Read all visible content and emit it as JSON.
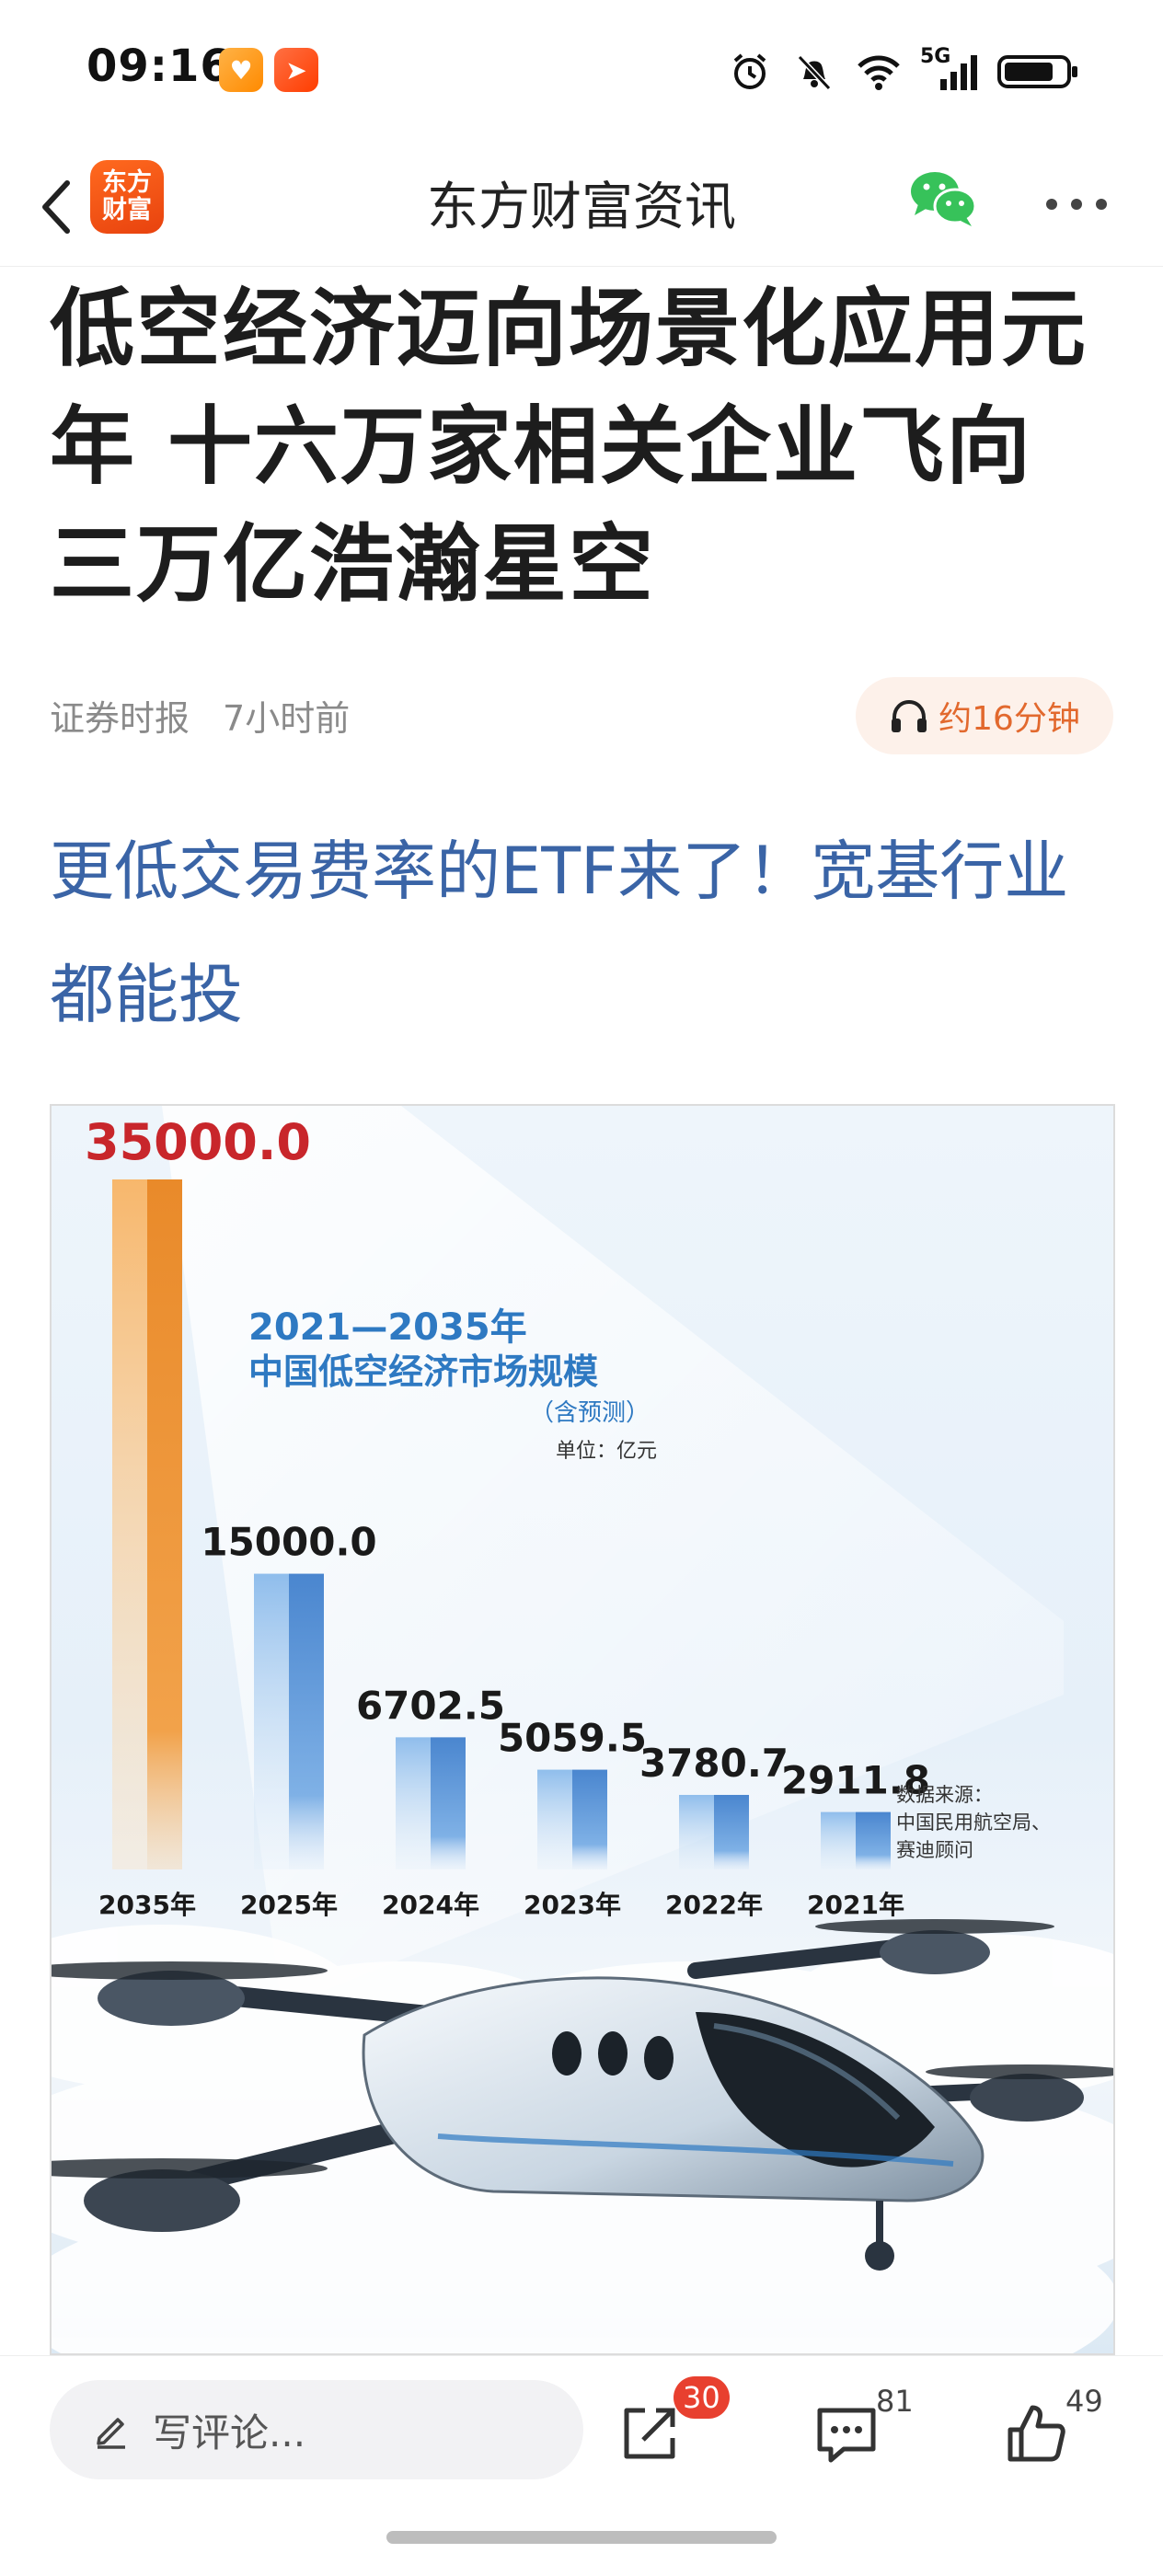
{
  "status_bar": {
    "time": "09:16",
    "network": "5G",
    "icons": [
      "alarm-icon",
      "mute-icon",
      "wifi-icon",
      "signal-icon",
      "battery-icon"
    ]
  },
  "nav": {
    "logo_line1": "东方",
    "logo_line2": "财富",
    "title": "东方财富资讯",
    "icons": [
      "back-icon",
      "wechat-icon",
      "more-icon"
    ]
  },
  "article": {
    "headline": "低空经济迈向场景化应用元年 十六万家相关企业飞向三万亿浩瀚星空",
    "source": "证券时报",
    "time_ago": "7小时前",
    "listen_label": "约16分钟",
    "promo_link": "更低交易费率的ETF来了！宽基行业都能投"
  },
  "infographic": {
    "title_line1": "2021—2035年",
    "title_line2": "中国低空经济市场规模",
    "title_line3": "（含预测）",
    "unit": "单位：亿元",
    "source_line1": "数据来源：",
    "source_line2": "中国民用航空局、",
    "source_line3": "赛迪顾问",
    "colors": {
      "highlight": "#ee8a2a",
      "bar": "#4f8fd4",
      "value_highlight": "#c8262b",
      "title": "#2e79c2"
    }
  },
  "chart_data": {
    "type": "bar",
    "title": "2021—2035年 中国低空经济市场规模（含预测）",
    "ylabel": "单位：亿元",
    "categories": [
      "2035年",
      "2025年",
      "2024年",
      "2023年",
      "2022年",
      "2021年"
    ],
    "values": [
      35000.0,
      15000.0,
      6702.5,
      5059.5,
      3780.7,
      2911.8
    ],
    "value_labels": [
      "35000.0",
      "15000.0",
      "6702.5",
      "5059.5",
      "3780.7",
      "2911.8"
    ],
    "highlight_index": 0,
    "ylim": [
      0,
      35000
    ],
    "grid": false,
    "legend": "none"
  },
  "bottom_bar": {
    "comment_placeholder": "写评论...",
    "share_count": "30",
    "comment_count": "81",
    "like_count": "49"
  }
}
